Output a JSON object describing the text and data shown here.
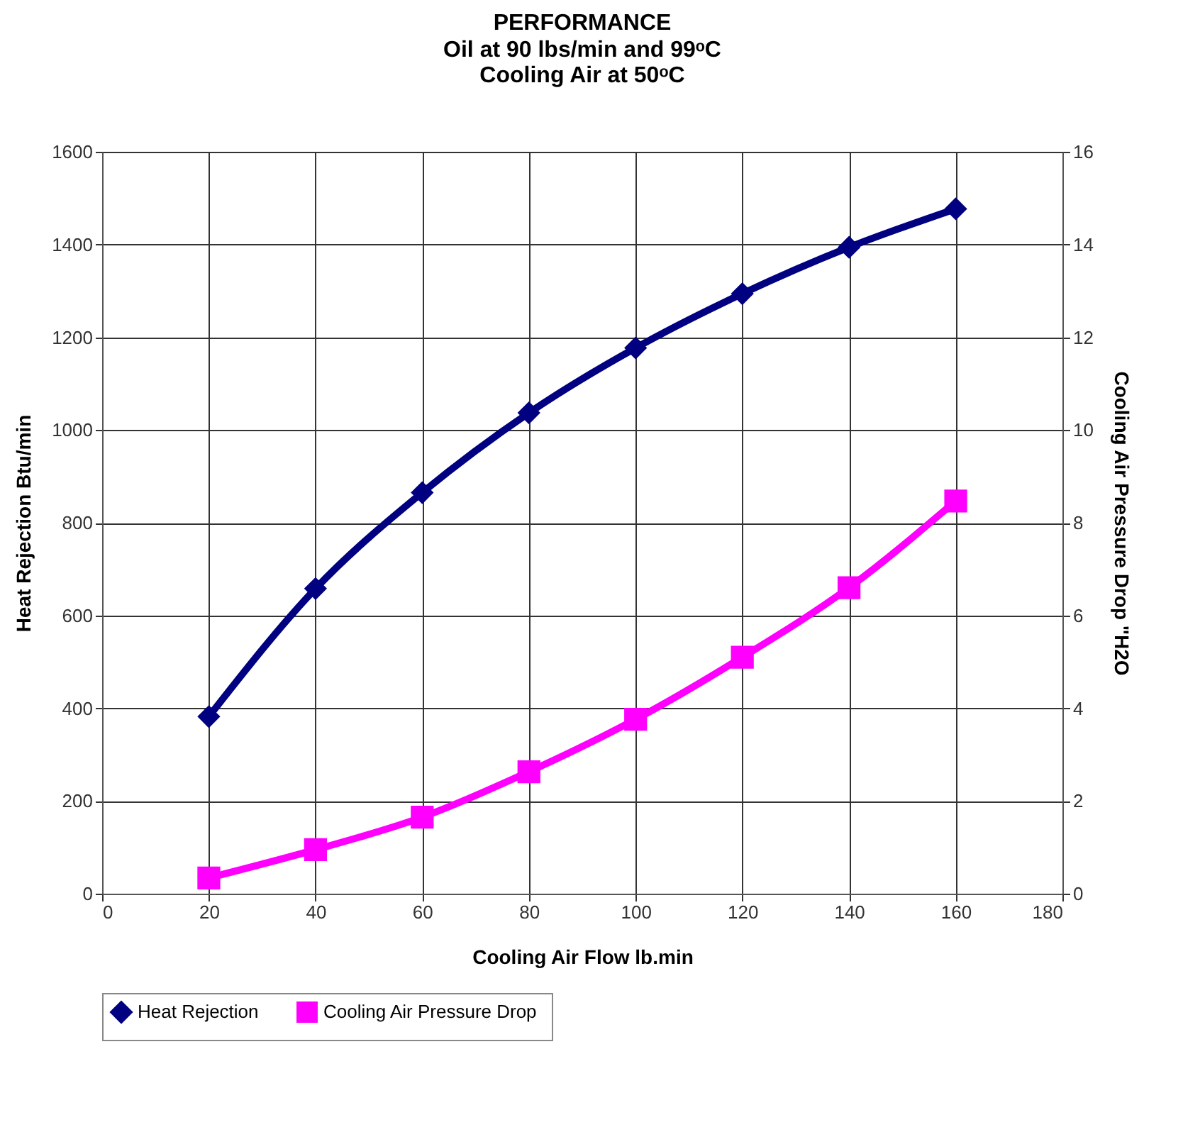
{
  "chart_data": {
    "type": "line",
    "title": "PERFORMANCE",
    "subtitle": [
      "Oil at 90 lbs/min and 99ᵒC",
      "Cooling Air at 50ᵒC"
    ],
    "xlabel": "Cooling Air Flow lb.min",
    "ylabel": "Heat Rejection Btu/min",
    "y2label": "Cooling Air Pressure Drop \"H2O",
    "x": [
      20,
      40,
      60,
      80,
      100,
      120,
      140,
      160
    ],
    "series": [
      {
        "name": "Heat Rejection",
        "color": "#000080",
        "marker": "diamond",
        "values": [
          382,
          658,
          865,
          1037,
          1177,
          1294,
          1394,
          1477
        ]
      },
      {
        "name": "Cooling Air Pressure  Drop",
        "color": "#ff00ff",
        "marker": "square",
        "axis": "y2",
        "values": [
          0.34,
          0.95,
          1.65,
          2.63,
          3.76,
          5.1,
          6.6,
          8.47
        ]
      }
    ],
    "xlim": [
      0,
      180
    ],
    "xticks": [
      0,
      20,
      40,
      60,
      80,
      100,
      120,
      140,
      160,
      180
    ],
    "ylim": [
      0,
      1600
    ],
    "yticks": [
      0,
      200,
      400,
      600,
      800,
      1000,
      1200,
      1400,
      1600
    ],
    "y2lim": [
      0,
      16
    ],
    "y2ticks": [
      0,
      2,
      4,
      6,
      8,
      10,
      12,
      14,
      16
    ],
    "grid": true,
    "legend": "bottom",
    "line_style": "solid"
  }
}
